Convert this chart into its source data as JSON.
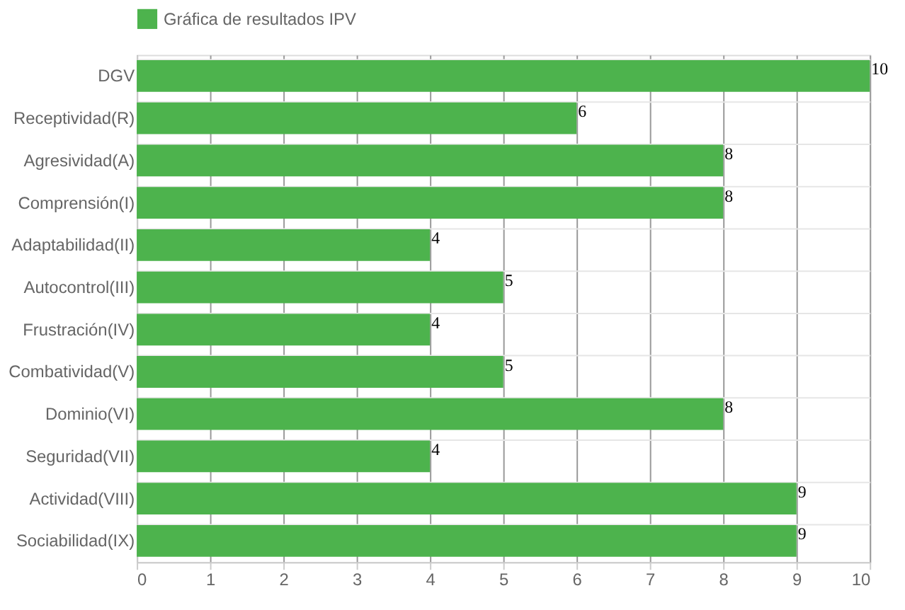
{
  "chart_data": {
    "type": "bar",
    "orientation": "horizontal",
    "categories": [
      "DGV",
      "Receptividad(R)",
      "Agresividad(A)",
      "Comprensión(I)",
      "Adaptabilidad(II)",
      "Autocontrol(III)",
      "Frustración(IV)",
      "Combatividad(V)",
      "Dominio(VI)",
      "Seguridad(VII)",
      "Actividad(VIII)",
      "Sociabilidad(IX)"
    ],
    "series": [
      {
        "name": "Gráfica de resultados IPV",
        "color": "#4db34d",
        "values": [
          10,
          6,
          8,
          8,
          4,
          5,
          4,
          5,
          8,
          4,
          9,
          9
        ]
      }
    ],
    "xlim": [
      0,
      10
    ],
    "xticks": [
      0,
      1,
      2,
      3,
      4,
      5,
      6,
      7,
      8,
      9,
      10
    ],
    "grid": true,
    "legend": "top",
    "data_labels": true
  }
}
